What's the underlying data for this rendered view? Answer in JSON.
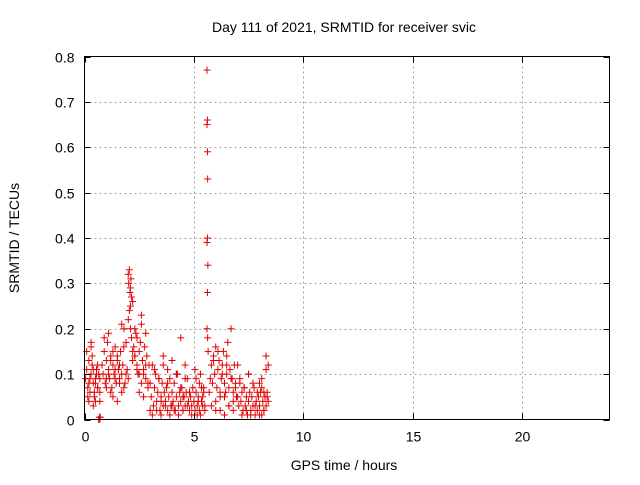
{
  "chart_data": {
    "type": "scatter",
    "title": "Day 111 of 2021, SRMTID for receiver svic",
    "xlabel": "GPS time / hours",
    "ylabel": "SRMTID / TECUs",
    "xlim": [
      0,
      24
    ],
    "ylim": [
      0,
      0.8
    ],
    "xticks": [
      0,
      5,
      10,
      15,
      20
    ],
    "xtick_labels": [
      "0",
      "5",
      "10",
      "15",
      "20"
    ],
    "yticks": [
      0,
      0.1,
      0.2,
      0.3,
      0.4,
      0.5,
      0.6,
      0.7,
      0.8
    ],
    "ytick_labels": [
      "0",
      "0.1",
      "0.2",
      "0.3",
      "0.4",
      "0.5",
      "0.6",
      "0.7",
      "0.8"
    ],
    "grid": true,
    "marker": "+",
    "color": "#e00000",
    "series": [
      {
        "name": "SRMTID",
        "x": [
          0.05,
          0.1,
          0.15,
          0.2,
          0.25,
          0.3,
          0.35,
          0.4,
          0.45,
          0.5,
          0.55,
          0.6,
          0.65,
          0.7,
          0.1,
          0.2,
          0.3,
          0.4,
          0.5,
          0.6,
          0.7,
          0.15,
          0.25,
          0.35,
          0.45,
          0.55,
          0.2,
          0.4,
          0.6,
          0.3,
          0.5,
          0.7,
          0.7,
          0.72,
          0.8,
          0.85,
          0.9,
          0.95,
          1.0,
          1.05,
          1.1,
          1.15,
          1.2,
          1.25,
          1.3,
          1.35,
          1.4,
          1.45,
          1.5,
          1.55,
          1.6,
          1.65,
          1.7,
          1.75,
          1.8,
          1.85,
          1.9,
          1.95,
          0.9,
          1.0,
          1.1,
          1.2,
          1.3,
          1.4,
          1.5,
          1.6,
          1.7,
          1.8,
          1.9,
          1.0,
          1.2,
          1.4,
          1.6,
          1.8,
          1.1,
          1.3,
          1.5,
          1.7,
          2.0,
          2.02,
          2.05,
          2.08,
          2.1,
          2.12,
          2.15,
          2.0,
          2.05,
          2.1,
          2.15,
          2.2,
          2.25,
          2.3,
          2.35,
          2.4,
          2.45,
          2.5,
          2.55,
          2.6,
          2.65,
          2.7,
          2.75,
          2.8,
          2.85,
          2.9,
          2.95,
          2.1,
          2.3,
          2.5,
          2.7,
          2.9,
          2.2,
          2.4,
          2.6,
          2.8,
          2.0,
          2.2,
          2.4,
          2.6,
          2.8,
          2.3,
          2.5,
          2.7,
          3.0,
          3.05,
          3.1,
          3.15,
          3.2,
          3.25,
          3.3,
          3.35,
          3.4,
          3.45,
          3.5,
          3.55,
          3.6,
          3.65,
          3.7,
          3.75,
          3.8,
          3.85,
          3.9,
          3.95,
          4.0,
          4.05,
          4.1,
          4.15,
          4.2,
          4.25,
          4.3,
          4.35,
          4.4,
          4.45,
          4.5,
          4.55,
          4.6,
          4.65,
          4.7,
          4.75,
          4.8,
          4.85,
          4.9,
          4.95,
          3.1,
          3.3,
          3.5,
          3.7,
          3.9,
          4.1,
          4.3,
          4.5,
          4.7,
          4.9,
          3.2,
          3.4,
          3.6,
          3.8,
          4.0,
          4.2,
          4.4,
          4.6,
          4.8,
          3.0,
          3.5,
          4.0,
          4.5,
          3.6,
          4.2,
          4.4,
          3.8,
          4.6,
          5.0,
          5.05,
          5.1,
          5.15,
          5.2,
          5.25,
          5.3,
          5.35,
          5.4,
          5.45,
          5.5,
          5.1,
          5.2,
          5.3,
          5.4,
          5.5,
          5.05,
          5.25,
          5.45,
          5.15,
          5.35,
          5.6,
          5.62,
          5.6,
          5.62,
          5.63,
          5.6,
          5.62,
          5.64,
          5.62,
          5.6,
          5.63,
          5.65,
          5.7,
          5.75,
          5.8,
          5.85,
          5.9,
          5.95,
          6.0,
          6.05,
          6.1,
          6.15,
          6.2,
          6.25,
          6.3,
          6.35,
          6.4,
          6.45,
          6.5,
          6.55,
          6.6,
          6.65,
          6.7,
          6.75,
          6.8,
          6.85,
          6.9,
          6.95,
          5.8,
          6.0,
          6.2,
          6.4,
          6.6,
          6.8,
          5.9,
          6.1,
          6.3,
          6.5,
          6.7,
          6.9,
          6.0,
          6.4,
          6.8,
          6.2,
          6.6,
          6.5,
          7.0,
          7.05,
          7.1,
          7.15,
          7.2,
          7.25,
          7.3,
          7.35,
          7.4,
          7.45,
          7.5,
          7.55,
          7.6,
          7.65,
          7.7,
          7.75,
          7.8,
          7.85,
          7.9,
          7.95,
          8.0,
          8.05,
          8.1,
          8.15,
          8.2,
          8.25,
          8.3,
          8.35,
          8.4,
          7.1,
          7.3,
          7.5,
          7.7,
          7.9,
          8.1,
          8.3,
          7.2,
          7.4,
          7.6,
          7.8,
          8.0,
          8.2,
          7.0,
          7.5,
          8.0,
          8.3,
          8.4,
          8.1,
          8.2,
          8.35,
          0.65,
          0.68
        ],
        "y": [
          0.09,
          0.11,
          0.07,
          0.13,
          0.06,
          0.1,
          0.12,
          0.08,
          0.05,
          0.09,
          0.11,
          0.07,
          0.1,
          0.06,
          0.15,
          0.04,
          0.17,
          0.03,
          0.08,
          0.12,
          0.04,
          0.05,
          0.09,
          0.14,
          0.06,
          0.1,
          0.08,
          0.11,
          0.07,
          0.16,
          0.04,
          0.09,
          0.0,
          0.005,
          0.12,
          0.1,
          0.15,
          0.08,
          0.13,
          0.17,
          0.11,
          0.09,
          0.14,
          0.07,
          0.12,
          0.1,
          0.16,
          0.08,
          0.13,
          0.11,
          0.09,
          0.15,
          0.06,
          0.12,
          0.2,
          0.08,
          0.17,
          0.11,
          0.18,
          0.07,
          0.1,
          0.13,
          0.05,
          0.09,
          0.14,
          0.12,
          0.21,
          0.16,
          0.1,
          0.09,
          0.06,
          0.11,
          0.08,
          0.07,
          0.19,
          0.15,
          0.04,
          0.1,
          0.32,
          0.3,
          0.33,
          0.28,
          0.29,
          0.31,
          0.27,
          0.22,
          0.24,
          0.2,
          0.18,
          0.26,
          0.16,
          0.14,
          0.19,
          0.12,
          0.1,
          0.15,
          0.17,
          0.21,
          0.13,
          0.11,
          0.16,
          0.09,
          0.14,
          0.08,
          0.12,
          0.25,
          0.2,
          0.06,
          0.1,
          0.07,
          0.15,
          0.18,
          0.23,
          0.12,
          0.09,
          0.13,
          0.11,
          0.08,
          0.19,
          0.14,
          0.1,
          0.05,
          0.08,
          0.05,
          0.12,
          0.03,
          0.07,
          0.1,
          0.04,
          0.06,
          0.09,
          0.02,
          0.05,
          0.08,
          0.03,
          0.06,
          0.04,
          0.07,
          0.02,
          0.05,
          0.09,
          0.03,
          0.06,
          0.04,
          0.08,
          0.02,
          0.05,
          0.1,
          0.03,
          0.06,
          0.04,
          0.07,
          0.02,
          0.05,
          0.03,
          0.06,
          0.09,
          0.04,
          0.02,
          0.05,
          0.03,
          0.07,
          0.01,
          0.02,
          0.01,
          0.03,
          0.01,
          0.02,
          0.01,
          0.02,
          0.03,
          0.01,
          0.11,
          0.09,
          0.12,
          0.08,
          0.13,
          0.1,
          0.07,
          0.09,
          0.06,
          0.02,
          0.04,
          0.03,
          0.05,
          0.14,
          0.1,
          0.18,
          0.11,
          0.12,
          0.04,
          0.02,
          0.06,
          0.03,
          0.05,
          0.08,
          0.01,
          0.07,
          0.03,
          0.06,
          0.02,
          0.09,
          0.04,
          0.1,
          0.05,
          0.03,
          0.11,
          0.02,
          0.07,
          0.01,
          0.04,
          0.77,
          0.66,
          0.65,
          0.59,
          0.53,
          0.39,
          0.4,
          0.34,
          0.28,
          0.2,
          0.18,
          0.15,
          0.06,
          0.09,
          0.12,
          0.08,
          0.14,
          0.1,
          0.16,
          0.07,
          0.11,
          0.13,
          0.05,
          0.09,
          0.12,
          0.15,
          0.08,
          0.06,
          0.1,
          0.17,
          0.07,
          0.11,
          0.2,
          0.09,
          0.06,
          0.12,
          0.08,
          0.05,
          0.03,
          0.04,
          0.02,
          0.05,
          0.03,
          0.04,
          0.13,
          0.15,
          0.1,
          0.12,
          0.09,
          0.07,
          0.02,
          0.01,
          0.02,
          0.06,
          0.03,
          0.14,
          0.05,
          0.03,
          0.08,
          0.04,
          0.06,
          0.02,
          0.07,
          0.03,
          0.05,
          0.01,
          0.04,
          0.06,
          0.02,
          0.05,
          0.03,
          0.07,
          0.01,
          0.04,
          0.02,
          0.05,
          0.03,
          0.06,
          0.01,
          0.04,
          0.02,
          0.05,
          0.03,
          0.06,
          0.04,
          0.09,
          0.07,
          0.1,
          0.08,
          0.06,
          0.09,
          0.11,
          0.01,
          0.02,
          0.01,
          0.03,
          0.01,
          0.02,
          0.12,
          0.1,
          0.08,
          0.14,
          0.12,
          0.07,
          0.06,
          0.05,
          0.0,
          0.005
        ]
      }
    ]
  }
}
